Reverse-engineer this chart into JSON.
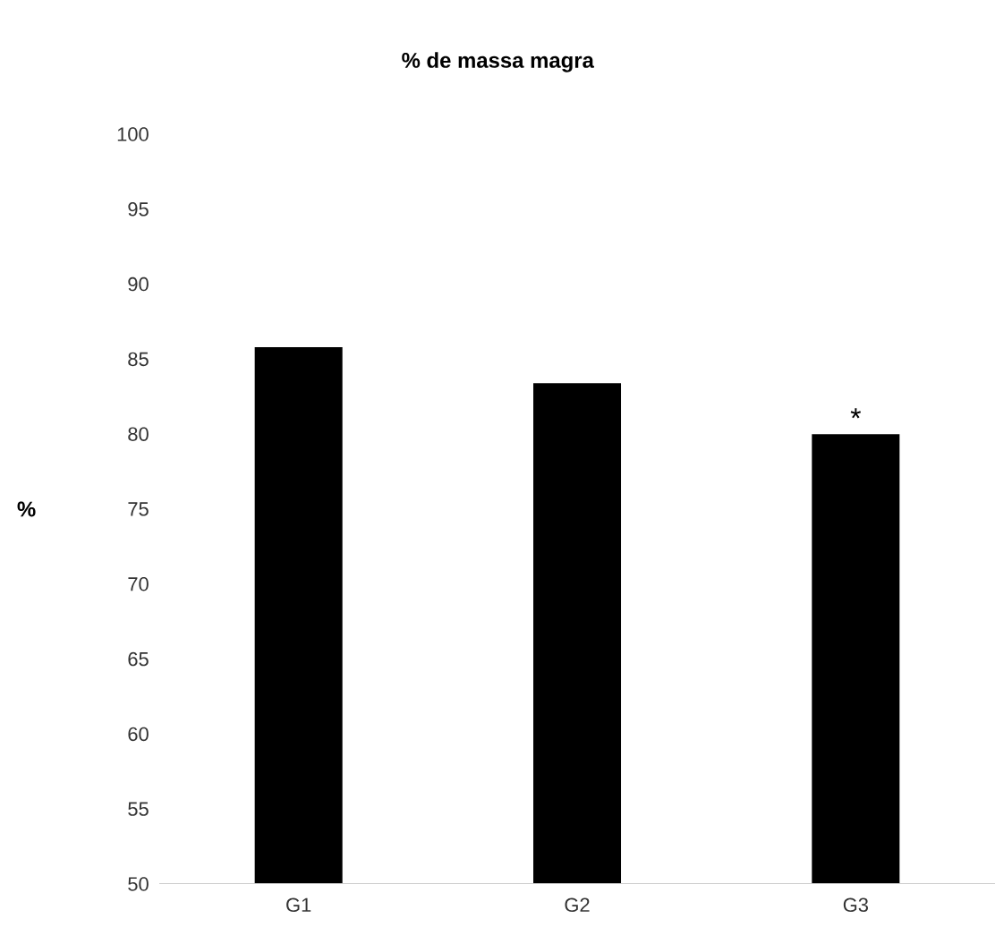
{
  "chart_data": {
    "type": "bar",
    "title": "% de massa magra",
    "ylabel": "%",
    "categories": [
      "G1",
      "G2",
      "G3"
    ],
    "values": [
      85.8,
      83.4,
      80.0
    ],
    "color": "#000000",
    "ylim": [
      50,
      100
    ],
    "yticks": [
      50,
      55,
      60,
      65,
      70,
      75,
      80,
      85,
      90,
      95,
      100
    ],
    "annotations": [
      {
        "text": "*",
        "x": "G3",
        "y": 80.0
      }
    ]
  }
}
